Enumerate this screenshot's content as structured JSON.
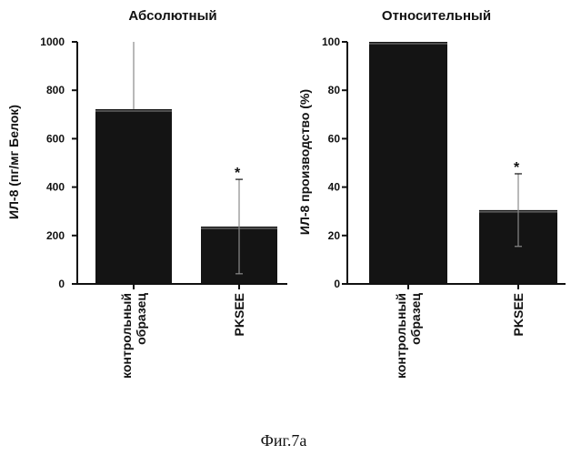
{
  "chart_data": [
    {
      "type": "bar",
      "title": "Абсолютный",
      "ylabel": "ИЛ-8 (пг/мг Белок)",
      "categories": [
        [
          "контрольный",
          "образец"
        ],
        [
          "PKSEE"
        ]
      ],
      "values": [
        722,
        237
      ],
      "errors_up": [
        300,
        195
      ],
      "errors_down": [
        0,
        195
      ],
      "significance": [
        "",
        "*"
      ],
      "ylim": [
        0,
        1000
      ],
      "yticks": [
        0,
        200,
        400,
        600,
        800,
        1000
      ],
      "ytick_labels": [
        "0",
        "200",
        "400",
        "600",
        "800",
        "1000"
      ],
      "grid": false
    },
    {
      "type": "bar",
      "title": "Относительный",
      "ylabel": "ИЛ-8 производство (%)",
      "categories": [
        [
          "контрольный",
          "образец"
        ],
        [
          "PKSEE"
        ]
      ],
      "values": [
        100,
        30.5
      ],
      "errors_up": [
        0,
        15
      ],
      "errors_down": [
        0,
        15
      ],
      "significance": [
        "",
        "*"
      ],
      "ylim": [
        0,
        100
      ],
      "yticks": [
        0,
        20,
        40,
        60,
        80,
        100
      ],
      "ytick_labels": [
        "0",
        "20",
        "40",
        "60",
        "80",
        "100"
      ],
      "grid": false
    }
  ],
  "caption": "Фиг.7а",
  "colors": {
    "bar": "#141414",
    "ink": "#111111"
  }
}
